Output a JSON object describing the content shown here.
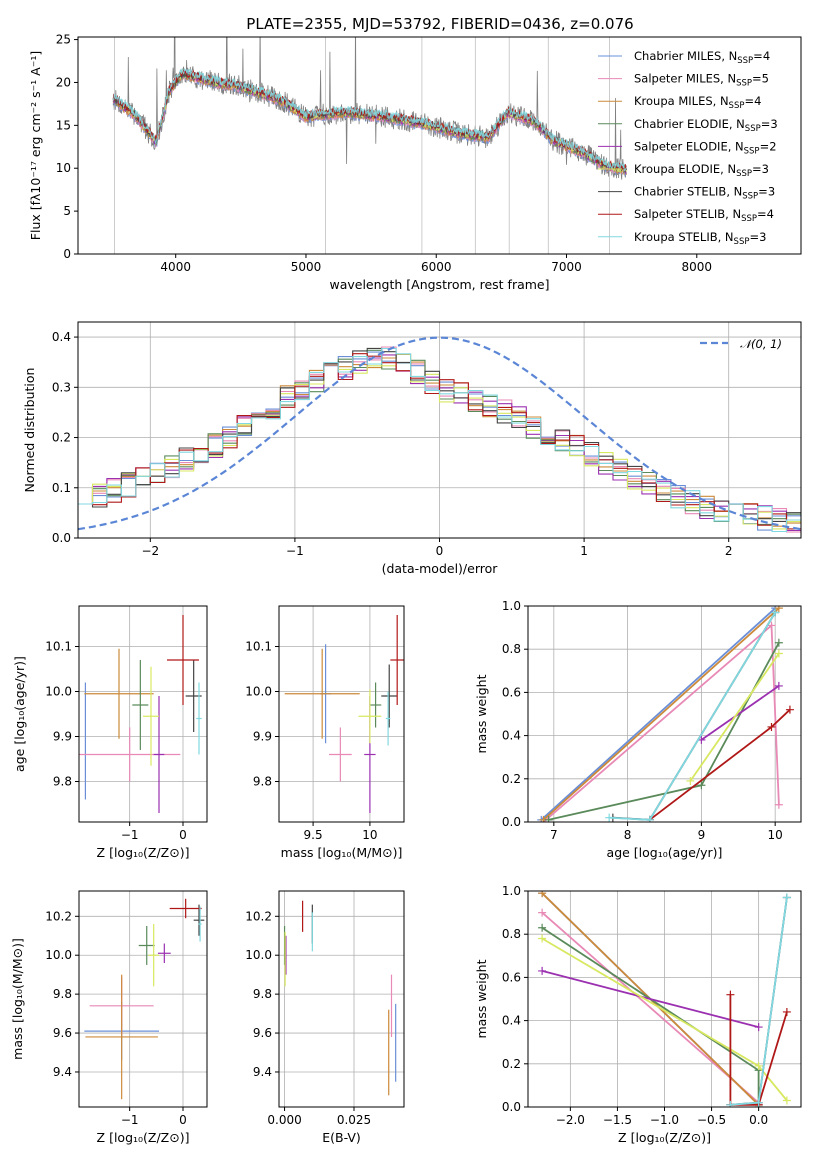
{
  "figure": {
    "title": "PLATE=2355, MJD=53792, FIBERID=0436, z=0.076"
  },
  "model_colors": [
    "#6a8fd8",
    "#e889b6",
    "#cc8a3a",
    "#5a8a5a",
    "#9b30b0",
    "#d8e860",
    "#444444",
    "#b01818",
    "#80d8e0"
  ],
  "chart_data": [
    {
      "id": "spectrum",
      "type": "line",
      "xlabel": "wavelength [Angstrom, rest frame]",
      "ylabel": "Flux [fλ10⁻¹⁷ erg cm⁻² s⁻¹ A⁻¹]",
      "xlim": [
        3250,
        8800
      ],
      "ylim": [
        0,
        25.3
      ],
      "xticks": [
        4000,
        5000,
        6000,
        7000,
        8000
      ],
      "yticks": [
        0,
        5,
        10,
        15,
        20,
        25
      ],
      "grid": false,
      "legend_position": "top-right",
      "data_series": {
        "name": "",
        "color": "#808080"
      },
      "anchor_wavelengths": [
        3530,
        3700,
        3850,
        3950,
        4050,
        4300,
        4500,
        4800,
        5000,
        5300,
        5600,
        5900,
        6200,
        6400,
        6550,
        6650,
        6750,
        6900,
        7100,
        7300,
        7450
      ],
      "anchor_flux": [
        18.0,
        16.0,
        13.0,
        19.0,
        21.0,
        20.0,
        19.5,
        18.0,
        16.0,
        16.5,
        16.0,
        15.2,
        14.0,
        13.6,
        16.5,
        16.0,
        15.5,
        13.2,
        12.0,
        10.3,
        9.8
      ],
      "series": [
        {
          "name": "Chabrier MILES, N_SSP=4",
          "legend_base": "Chabrier MILES, N",
          "nssp": "4",
          "color": "#6a8fd8"
        },
        {
          "name": "Salpeter MILES, N_SSP=5",
          "legend_base": "Salpeter MILES, N",
          "nssp": "5",
          "color": "#e889b6"
        },
        {
          "name": "Kroupa MILES, N_SSP=4",
          "legend_base": "Kroupa MILES, N",
          "nssp": "4",
          "color": "#cc8a3a"
        },
        {
          "name": "Chabrier ELODIE, N_SSP=3",
          "legend_base": "Chabrier ELODIE, N",
          "nssp": "3",
          "color": "#5a8a5a"
        },
        {
          "name": "Salpeter ELODIE, N_SSP=2",
          "legend_base": "Salpeter ELODIE, N",
          "nssp": "2",
          "color": "#9b30b0"
        },
        {
          "name": "Kroupa ELODIE, N_SSP=3",
          "legend_base": "Kroupa ELODIE, N",
          "nssp": "3",
          "color": "#d8e860"
        },
        {
          "name": "Chabrier STELIB, N_SSP=3",
          "legend_base": "Chabrier STELIB, N",
          "nssp": "3",
          "color": "#444444"
        },
        {
          "name": "Salpeter STELIB, N_SSP=4",
          "legend_base": "Salpeter STELIB, N",
          "nssp": "4",
          "color": "#b01818"
        },
        {
          "name": "Kroupa STELIB, N_SSP=3",
          "legend_base": "Kroupa STELIB, N",
          "nssp": "3",
          "color": "#80d8e0"
        }
      ]
    },
    {
      "id": "residuals",
      "type": "histogram",
      "xlabel": "(data-model)/error",
      "ylabel": "Normed distribution",
      "xlim": [
        -2.5,
        2.5
      ],
      "ylim": [
        0,
        0.43
      ],
      "xticks": [
        -2,
        -1,
        0,
        1,
        2
      ],
      "yticks": [
        0.0,
        0.1,
        0.2,
        0.3,
        0.4
      ],
      "grid": true,
      "bin_width": 0.1,
      "profile_x": [
        -2.5,
        -2.0,
        -1.5,
        -1.0,
        -0.6,
        -0.3,
        0.0,
        0.4,
        0.8,
        1.2,
        1.6,
        2.0,
        2.5
      ],
      "profile_y": [
        0.07,
        0.12,
        0.19,
        0.29,
        0.345,
        0.36,
        0.3,
        0.26,
        0.2,
        0.145,
        0.085,
        0.05,
        0.03
      ],
      "gaussian": {
        "label": "𝒩(0, 1)",
        "mean": 0,
        "sigma": 1,
        "color": "#5b86d6"
      },
      "legend_position": "top-right"
    },
    {
      "id": "age_vs_Z",
      "type": "errorbar",
      "xlabel": "Z [log₁₀(Z/Z⊙)]",
      "ylabel": "age  [log₁₀(age/yr)]",
      "xlim": [
        -1.95,
        0.45
      ],
      "ylim": [
        9.71,
        10.19
      ],
      "xticks": [
        -1,
        0
      ],
      "yticks": [
        9.8,
        9.9,
        10.0,
        10.1
      ],
      "grid": true,
      "points": [
        {
          "x": -1.83,
          "xerr": 0,
          "y": 9.89,
          "yerr": 0.13
        },
        {
          "x": -1.0,
          "xerr": 0.95,
          "y": 9.86,
          "yerr": 0.06
        },
        {
          "x": -1.2,
          "xerr": 0.65,
          "y": 9.995,
          "yerr": 0.1
        },
        {
          "x": -0.8,
          "xerr": 0.15,
          "y": 9.97,
          "yerr": 0.1
        },
        {
          "x": -0.45,
          "xerr": 0.1,
          "y": 9.86,
          "yerr": 0.13
        },
        {
          "x": -0.6,
          "xerr": 0.15,
          "y": 9.945,
          "yerr": 0.11
        },
        {
          "x": 0.2,
          "xerr": 0.15,
          "y": 9.99,
          "yerr": 0.08
        },
        {
          "x": 0.0,
          "xerr": 0.3,
          "y": 10.07,
          "yerr": 0.1
        },
        {
          "x": 0.3,
          "xerr": 0.05,
          "y": 9.94,
          "yerr": 0.08
        }
      ]
    },
    {
      "id": "age_vs_mass",
      "type": "errorbar",
      "xlabel": "mass [log₁₀(M/M⊙)]",
      "ylabel": "",
      "xlim": [
        9.2,
        10.3
      ],
      "ylim": [
        9.71,
        10.19
      ],
      "xticks": [
        9.5,
        10.0
      ],
      "yticks": [
        9.8,
        9.9,
        10.0,
        10.1
      ],
      "grid": true,
      "points": [
        {
          "x": 9.61,
          "xerr": 0.05,
          "y": 9.995,
          "yerr": 0.11
        },
        {
          "x": 9.74,
          "xerr": 0.1,
          "y": 9.86,
          "yerr": 0.06
        },
        {
          "x": 9.58,
          "xerr": 0.33,
          "y": 9.995,
          "yerr": 0.1
        },
        {
          "x": 10.05,
          "xerr": 0.05,
          "y": 9.97,
          "yerr": 0.05
        },
        {
          "x": 10.0,
          "xerr": 0.05,
          "y": 9.86,
          "yerr": 0.13
        },
        {
          "x": 10.0,
          "xerr": 0.1,
          "y": 9.945,
          "yerr": 0.06
        },
        {
          "x": 10.17,
          "xerr": 0.07,
          "y": 9.99,
          "yerr": 0.07
        },
        {
          "x": 10.24,
          "xerr": 0.06,
          "y": 10.07,
          "yerr": 0.1
        },
        {
          "x": 10.16,
          "xerr": 0.02,
          "y": 9.94,
          "yerr": 0.06
        }
      ]
    },
    {
      "id": "weight_vs_age",
      "type": "line",
      "xlabel": "age  [log₁₀(age/yr)]",
      "ylabel": "mass weight",
      "xlim": [
        6.65,
        10.35
      ],
      "ylim": [
        0,
        1.0
      ],
      "xticks": [
        7,
        8,
        9,
        10
      ],
      "yticks": [
        0.0,
        0.2,
        0.4,
        0.6,
        0.8,
        1.0
      ],
      "grid": true,
      "series": [
        {
          "x": [
            6.83,
            10.0
          ],
          "y": [
            0.01,
            0.99
          ]
        },
        {
          "x": [
            6.86,
            9.95,
            10.05
          ],
          "y": [
            0.0,
            0.91,
            0.08
          ]
        },
        {
          "x": [
            6.86,
            10.05
          ],
          "y": [
            0.01,
            0.99
          ]
        },
        {
          "x": [
            6.93,
            9.0,
            10.05
          ],
          "y": [
            0.01,
            0.17,
            0.83
          ]
        },
        {
          "x": [
            9.0,
            10.05
          ],
          "y": [
            0.38,
            0.63
          ]
        },
        {
          "x": [
            8.85,
            10.05
          ],
          "y": [
            0.19,
            0.78
          ]
        },
        {
          "x": [
            7.8,
            8.3,
            10.0
          ],
          "y": [
            0.02,
            0.01,
            0.97
          ]
        },
        {
          "x": [
            8.3,
            9.95,
            10.2
          ],
          "y": [
            0.01,
            0.44,
            0.52
          ]
        },
        {
          "x": [
            7.75,
            8.3,
            10.0
          ],
          "y": [
            0.02,
            0.01,
            0.97
          ]
        }
      ]
    },
    {
      "id": "mass_vs_Z",
      "type": "errorbar",
      "xlabel": "Z [log₁₀(Z/Z⊙)]",
      "ylabel": "mass [log₁₀(M/M⊙)]",
      "xlim": [
        -1.95,
        0.45
      ],
      "ylim": [
        9.22,
        10.33
      ],
      "xticks": [
        -1,
        0
      ],
      "yticks": [
        9.4,
        9.6,
        9.8,
        10.0,
        10.2
      ],
      "grid": true,
      "points": [
        {
          "x": -1.15,
          "xerr": 0.7,
          "y": 9.61,
          "yerr": 0.15
        },
        {
          "x": -1.15,
          "xerr": 0.6,
          "y": 9.74,
          "yerr": 0.15
        },
        {
          "x": -1.15,
          "xerr": 0.68,
          "y": 9.58,
          "yerr": 0.32
        },
        {
          "x": -0.68,
          "xerr": 0.15,
          "y": 10.05,
          "yerr": 0.1
        },
        {
          "x": -0.35,
          "xerr": 0.12,
          "y": 10.01,
          "yerr": 0.05
        },
        {
          "x": -0.55,
          "xerr": 0.1,
          "y": 10.0,
          "yerr": 0.16
        },
        {
          "x": 0.3,
          "xerr": 0.1,
          "y": 10.18,
          "yerr": 0.08
        },
        {
          "x": 0.05,
          "xerr": 0.3,
          "y": 10.24,
          "yerr": 0.05
        },
        {
          "x": 0.32,
          "xerr": 0.03,
          "y": 10.16,
          "yerr": 0.09
        }
      ]
    },
    {
      "id": "mass_vs_EBV",
      "type": "errorbar",
      "xlabel": "E(B-V)",
      "ylabel": "",
      "xlim": [
        -0.002,
        0.043
      ],
      "ylim": [
        9.22,
        10.33
      ],
      "xticks": [
        0.0,
        0.025
      ],
      "xticklabels": [
        "0.000",
        "0.025"
      ],
      "yticks": [
        9.4,
        9.6,
        9.8,
        10.0,
        10.2
      ],
      "grid": true,
      "points": [
        {
          "x": 0.04,
          "xerr": 0,
          "y": 9.55,
          "yerr": 0.2
        },
        {
          "x": 0.0385,
          "xerr": 0,
          "y": 9.74,
          "yerr": 0.16
        },
        {
          "x": 0.0375,
          "xerr": 0,
          "y": 9.5,
          "yerr": 0.22
        },
        {
          "x": 0.0,
          "xerr": 0,
          "y": 10.05,
          "yerr": 0.1
        },
        {
          "x": 0.0005,
          "xerr": 0,
          "y": 10.0,
          "yerr": 0.1
        },
        {
          "x": 0.0002,
          "xerr": 0,
          "y": 9.98,
          "yerr": 0.14
        },
        {
          "x": 0.01,
          "xerr": 0,
          "y": 10.16,
          "yerr": 0.1
        },
        {
          "x": 0.0065,
          "xerr": 0,
          "y": 10.2,
          "yerr": 0.08
        },
        {
          "x": 0.01,
          "xerr": 0,
          "y": 10.12,
          "yerr": 0.1
        }
      ]
    },
    {
      "id": "weight_vs_Z",
      "type": "line",
      "xlabel": "Z [log₁₀(Z/Z⊙)]",
      "ylabel": "mass weight",
      "xlim": [
        -2.45,
        0.45
      ],
      "ylim": [
        0,
        1.0
      ],
      "xticks": [
        -2.0,
        -1.5,
        -1.0,
        -0.5,
        0.0
      ],
      "xticklabels": [
        "−2.0",
        "−1.5",
        "−1.0",
        "−0.5",
        "0.0"
      ],
      "yticks": [
        0.0,
        0.2,
        0.4,
        0.6,
        0.8,
        1.0
      ],
      "grid": true,
      "series": [
        {
          "x": [
            -2.3,
            0.0
          ],
          "y": [
            0.99,
            0.01
          ]
        },
        {
          "x": [
            -2.3,
            0.0
          ],
          "y": [
            0.9,
            0.02
          ]
        },
        {
          "x": [
            -2.3,
            0.0
          ],
          "y": [
            0.99,
            0.01
          ]
        },
        {
          "x": [
            -2.3,
            0.0,
            0.0
          ],
          "y": [
            0.83,
            0.17,
            0.0
          ]
        },
        {
          "x": [
            -2.3,
            0.0
          ],
          "y": [
            0.63,
            0.37
          ]
        },
        {
          "x": [
            -2.3,
            0.0,
            0.3
          ],
          "y": [
            0.78,
            0.19,
            0.03
          ]
        },
        {
          "x": [
            -0.3,
            0.0,
            0.3
          ],
          "y": [
            0.01,
            0.02,
            0.97
          ]
        },
        {
          "x": [
            -0.3,
            -0.3,
            0.0,
            0.3
          ],
          "y": [
            0.52,
            0.01,
            0.01,
            0.44
          ]
        },
        {
          "x": [
            -0.3,
            0.0,
            0.3
          ],
          "y": [
            0.01,
            0.02,
            0.97
          ]
        }
      ]
    }
  ]
}
